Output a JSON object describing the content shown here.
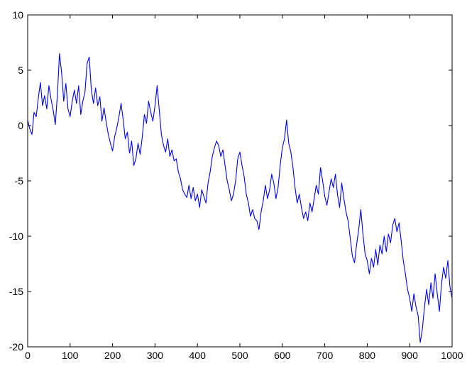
{
  "chart_data": {
    "type": "line",
    "title": "",
    "xlabel": "",
    "ylabel": "",
    "xlim": [
      0,
      1000
    ],
    "ylim": [
      -20,
      10
    ],
    "xticks": [
      0,
      100,
      200,
      300,
      400,
      500,
      600,
      700,
      800,
      900,
      1000
    ],
    "yticks": [
      10,
      5,
      0,
      -5,
      -10,
      -15,
      -20
    ],
    "grid": false,
    "legend": "none",
    "series": [
      {
        "color": "#0000ff",
        "points": [
          [
            0,
            0.5
          ],
          [
            5,
            -0.3
          ],
          [
            10,
            -0.8
          ],
          [
            15,
            1.2
          ],
          [
            20,
            0.8
          ],
          [
            25,
            2.5
          ],
          [
            30,
            3.9
          ],
          [
            35,
            1.8
          ],
          [
            40,
            2.7
          ],
          [
            45,
            1.5
          ],
          [
            50,
            3.6
          ],
          [
            55,
            2.4
          ],
          [
            60,
            1.4
          ],
          [
            65,
            0.1
          ],
          [
            70,
            2.8
          ],
          [
            75,
            6.5
          ],
          [
            80,
            4.8
          ],
          [
            85,
            2.2
          ],
          [
            90,
            3.8
          ],
          [
            95,
            1.5
          ],
          [
            100,
            0.8
          ],
          [
            105,
            2.2
          ],
          [
            110,
            3.2
          ],
          [
            115,
            2.0
          ],
          [
            120,
            3.6
          ],
          [
            125,
            1.0
          ],
          [
            130,
            2.2
          ],
          [
            135,
            3.0
          ],
          [
            140,
            5.6
          ],
          [
            145,
            6.2
          ],
          [
            150,
            3.2
          ],
          [
            155,
            2.0
          ],
          [
            160,
            3.4
          ],
          [
            165,
            1.8
          ],
          [
            170,
            2.6
          ],
          [
            175,
            0.4
          ],
          [
            180,
            1.6
          ],
          [
            185,
            0.3
          ],
          [
            190,
            -0.8
          ],
          [
            195,
            -1.6
          ],
          [
            200,
            -2.3
          ],
          [
            205,
            -1.0
          ],
          [
            210,
            -0.2
          ],
          [
            215,
            0.8
          ],
          [
            220,
            2.0
          ],
          [
            225,
            0.5
          ],
          [
            230,
            -1.2
          ],
          [
            235,
            -0.6
          ],
          [
            240,
            -2.5
          ],
          [
            245,
            -1.4
          ],
          [
            250,
            -3.6
          ],
          [
            255,
            -3.0
          ],
          [
            260,
            -1.6
          ],
          [
            265,
            -2.6
          ],
          [
            270,
            -1.0
          ],
          [
            275,
            1.0
          ],
          [
            280,
            0.2
          ],
          [
            285,
            2.2
          ],
          [
            290,
            1.2
          ],
          [
            295,
            0.4
          ],
          [
            300,
            1.8
          ],
          [
            305,
            3.6
          ],
          [
            310,
            1.4
          ],
          [
            315,
            -0.8
          ],
          [
            320,
            -1.8
          ],
          [
            325,
            -2.4
          ],
          [
            330,
            -1.2
          ],
          [
            335,
            -2.8
          ],
          [
            340,
            -2.2
          ],
          [
            345,
            -3.2
          ],
          [
            350,
            -3.0
          ],
          [
            355,
            -4.2
          ],
          [
            360,
            -4.8
          ],
          [
            365,
            -5.8
          ],
          [
            370,
            -6.2
          ],
          [
            375,
            -6.5
          ],
          [
            380,
            -5.4
          ],
          [
            385,
            -6.6
          ],
          [
            390,
            -5.6
          ],
          [
            395,
            -6.8
          ],
          [
            400,
            -6.2
          ],
          [
            405,
            -7.4
          ],
          [
            410,
            -5.8
          ],
          [
            415,
            -6.4
          ],
          [
            420,
            -7.0
          ],
          [
            425,
            -5.2
          ],
          [
            430,
            -4.2
          ],
          [
            435,
            -2.8
          ],
          [
            440,
            -2.0
          ],
          [
            445,
            -1.4
          ],
          [
            450,
            -1.8
          ],
          [
            455,
            -2.8
          ],
          [
            460,
            -2.2
          ],
          [
            465,
            -3.6
          ],
          [
            470,
            -5.0
          ],
          [
            475,
            -5.8
          ],
          [
            480,
            -6.8
          ],
          [
            485,
            -6.2
          ],
          [
            490,
            -5.0
          ],
          [
            495,
            -3.0
          ],
          [
            500,
            -2.4
          ],
          [
            505,
            -3.6
          ],
          [
            510,
            -4.6
          ],
          [
            515,
            -6.2
          ],
          [
            520,
            -7.0
          ],
          [
            525,
            -8.2
          ],
          [
            530,
            -7.6
          ],
          [
            535,
            -8.4
          ],
          [
            540,
            -8.6
          ],
          [
            545,
            -9.4
          ],
          [
            550,
            -7.8
          ],
          [
            555,
            -6.8
          ],
          [
            560,
            -5.4
          ],
          [
            565,
            -6.6
          ],
          [
            570,
            -5.8
          ],
          [
            575,
            -4.4
          ],
          [
            580,
            -5.2
          ],
          [
            585,
            -6.6
          ],
          [
            590,
            -5.6
          ],
          [
            595,
            -3.6
          ],
          [
            600,
            -2.0
          ],
          [
            605,
            -1.2
          ],
          [
            610,
            0.5
          ],
          [
            615,
            -1.6
          ],
          [
            620,
            -2.4
          ],
          [
            625,
            -3.8
          ],
          [
            630,
            -5.6
          ],
          [
            635,
            -7.0
          ],
          [
            640,
            -6.2
          ],
          [
            645,
            -7.4
          ],
          [
            650,
            -8.4
          ],
          [
            655,
            -7.8
          ],
          [
            660,
            -8.6
          ],
          [
            665,
            -7.0
          ],
          [
            670,
            -7.8
          ],
          [
            675,
            -6.6
          ],
          [
            680,
            -5.4
          ],
          [
            685,
            -6.2
          ],
          [
            690,
            -3.8
          ],
          [
            695,
            -5.0
          ],
          [
            700,
            -6.4
          ],
          [
            705,
            -7.2
          ],
          [
            710,
            -6.0
          ],
          [
            715,
            -4.8
          ],
          [
            720,
            -5.6
          ],
          [
            725,
            -4.4
          ],
          [
            730,
            -6.2
          ],
          [
            735,
            -7.4
          ],
          [
            740,
            -5.2
          ],
          [
            745,
            -6.6
          ],
          [
            750,
            -7.8
          ],
          [
            755,
            -8.6
          ],
          [
            760,
            -10.2
          ],
          [
            765,
            -11.8
          ],
          [
            770,
            -12.4
          ],
          [
            775,
            -10.8
          ],
          [
            780,
            -9.4
          ],
          [
            785,
            -7.6
          ],
          [
            790,
            -9.8
          ],
          [
            795,
            -11.6
          ],
          [
            800,
            -12.2
          ],
          [
            805,
            -13.4
          ],
          [
            810,
            -12.0
          ],
          [
            815,
            -12.8
          ],
          [
            820,
            -11.2
          ],
          [
            825,
            -12.6
          ],
          [
            830,
            -10.8
          ],
          [
            835,
            -11.6
          ],
          [
            840,
            -10.0
          ],
          [
            845,
            -11.4
          ],
          [
            850,
            -9.8
          ],
          [
            855,
            -10.6
          ],
          [
            860,
            -9.0
          ],
          [
            865,
            -8.4
          ],
          [
            870,
            -9.6
          ],
          [
            875,
            -8.8
          ],
          [
            880,
            -10.4
          ],
          [
            885,
            -12.2
          ],
          [
            890,
            -13.4
          ],
          [
            895,
            -14.8
          ],
          [
            900,
            -15.6
          ],
          [
            905,
            -16.8
          ],
          [
            910,
            -15.2
          ],
          [
            915,
            -16.4
          ],
          [
            920,
            -17.2
          ],
          [
            925,
            -19.6
          ],
          [
            930,
            -18.4
          ],
          [
            935,
            -16.4
          ],
          [
            940,
            -14.8
          ],
          [
            945,
            -16.2
          ],
          [
            950,
            -14.2
          ],
          [
            955,
            -15.6
          ],
          [
            960,
            -13.4
          ],
          [
            965,
            -15.2
          ],
          [
            970,
            -16.8
          ],
          [
            975,
            -14.4
          ],
          [
            980,
            -12.8
          ],
          [
            985,
            -13.8
          ],
          [
            990,
            -12.2
          ],
          [
            995,
            -14.6
          ],
          [
            1000,
            -15.6
          ]
        ]
      }
    ]
  }
}
